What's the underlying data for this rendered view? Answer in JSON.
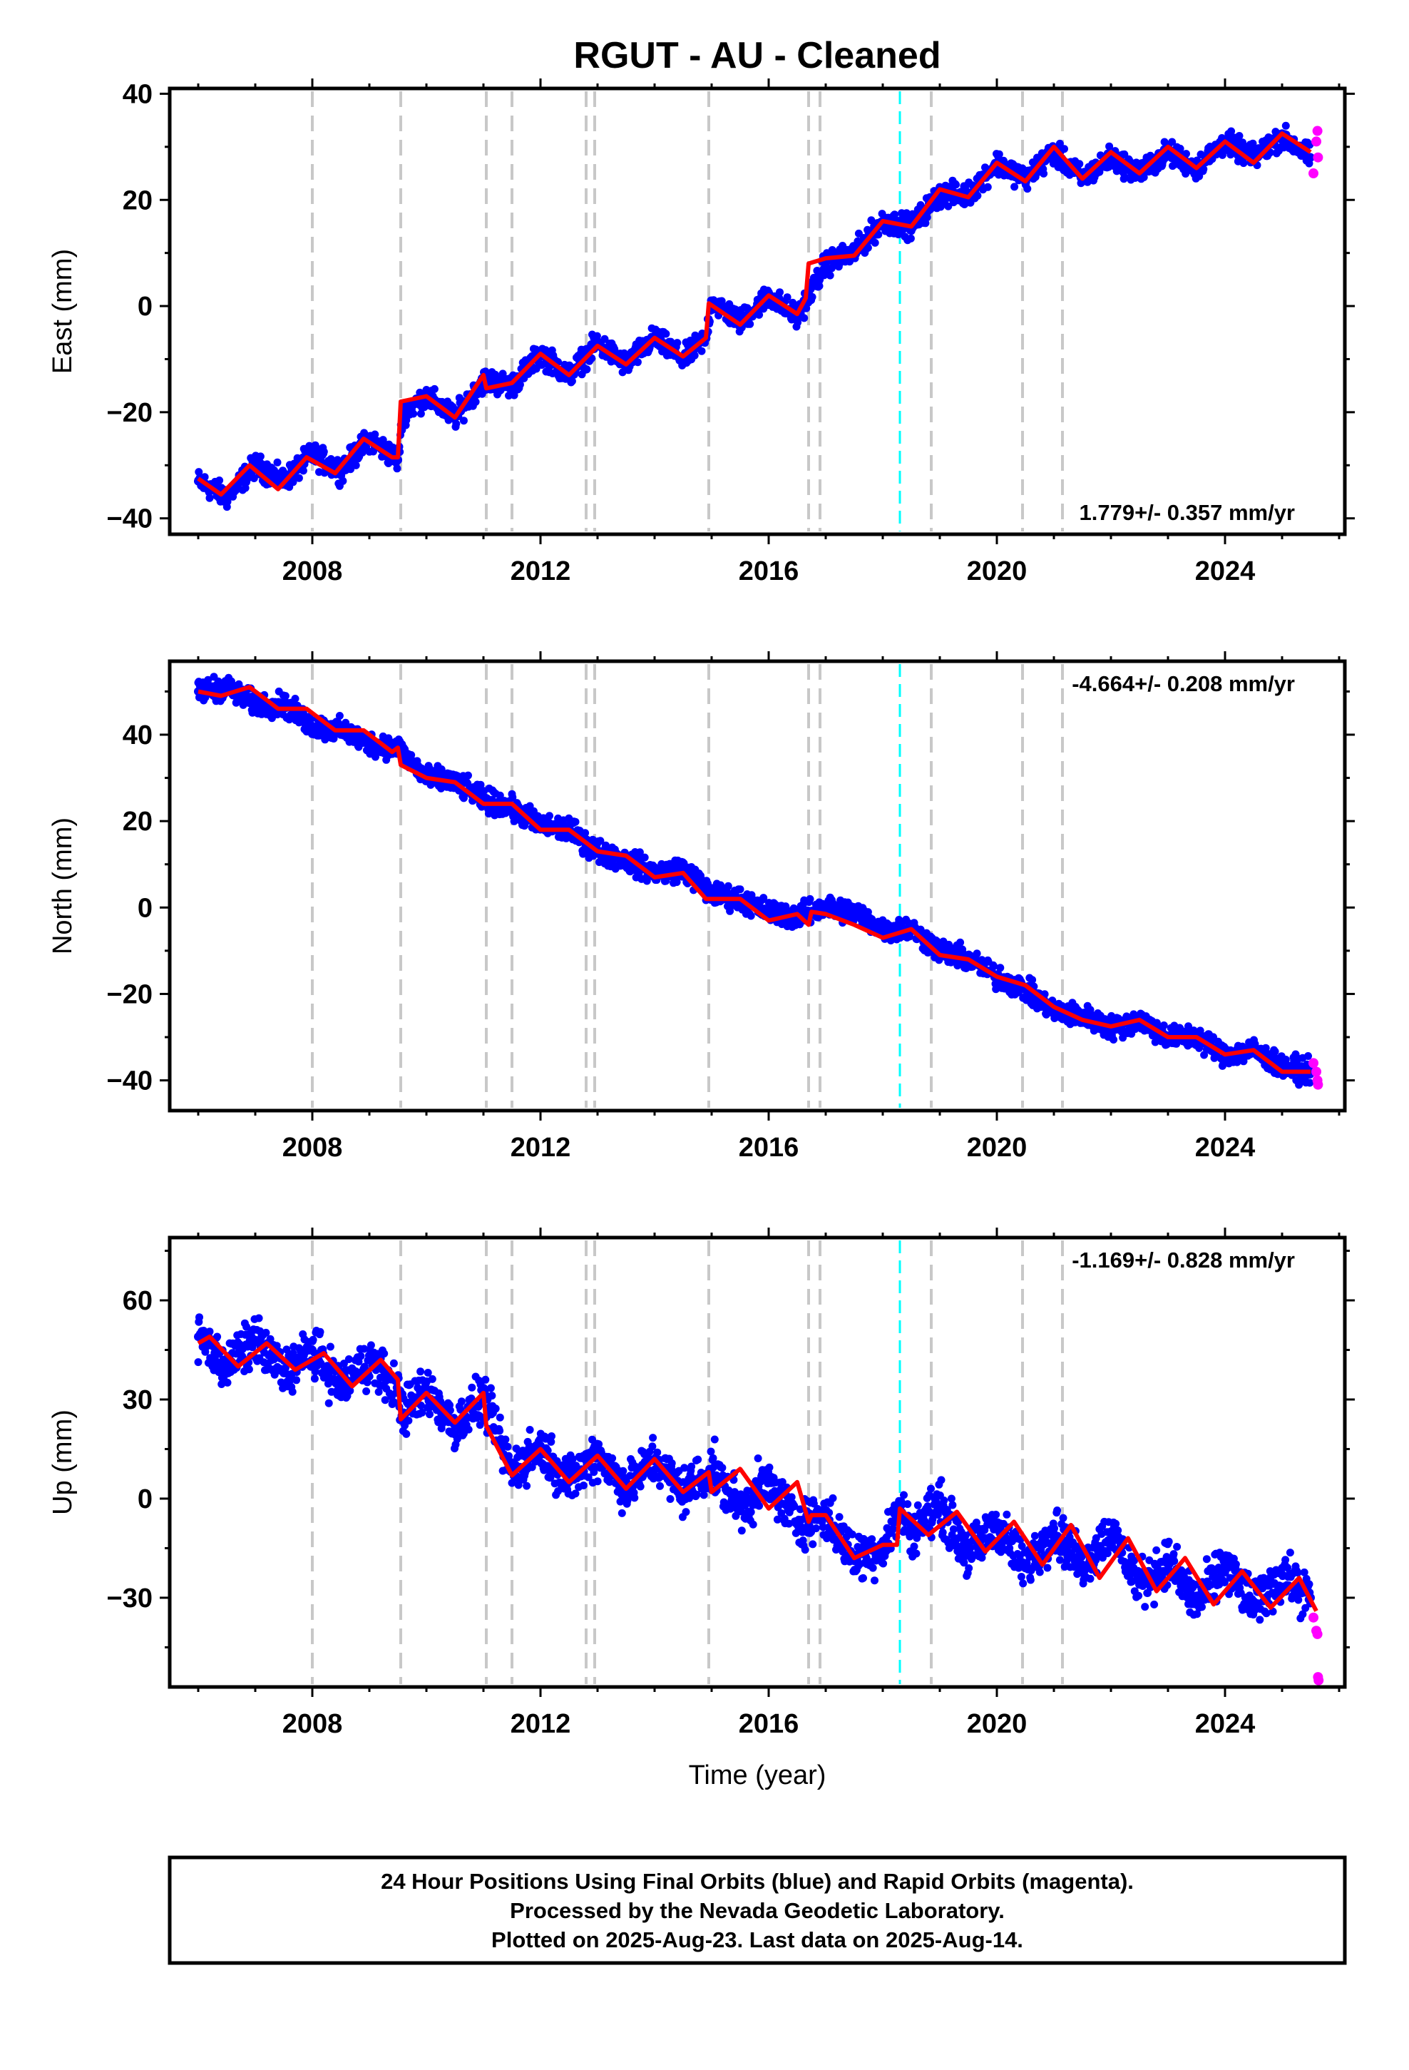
{
  "title": "RGUT  - AU - Cleaned",
  "xlabel": "Time (year)",
  "footer": [
    "24 Hour Positions Using Final Orbits (blue) and Rapid Orbits (magenta).",
    "Processed by the Nevada Geodetic Laboratory.",
    "Plotted on 2025-Aug-23. Last data on 2025-Aug-14."
  ],
  "colors": {
    "final_orbits": "#0000ff",
    "rapid_orbits": "#ff00ff",
    "model": "#ff0000",
    "equipment_change": "#c8c8c8",
    "earthquake": "#00ffff"
  },
  "chart_data": [
    {
      "type": "scatter",
      "panel": "east",
      "ylabel": "East (mm)",
      "xlim": [
        2005.5,
        2026.1
      ],
      "ylim": [
        -43,
        41
      ],
      "xticks": [
        2008,
        2012,
        2016,
        2020,
        2024
      ],
      "yticks": [
        -40,
        -20,
        0,
        20,
        40
      ],
      "rate_label": "1.779+/- 0.357 mm/yr",
      "rate_position": "bottom-right",
      "series": [
        {
          "name": "Final Orbits (blue)",
          "color": "#0000ff",
          "x": [
            2006.0,
            2006.5,
            2007.0,
            2007.5,
            2008.0,
            2008.5,
            2009.0,
            2009.5,
            2009.6,
            2010.0,
            2010.5,
            2011.0,
            2011.5,
            2012.0,
            2012.5,
            2013.0,
            2013.5,
            2014.0,
            2014.5,
            2014.9,
            2015.0,
            2015.5,
            2016.0,
            2016.5,
            2016.7,
            2017.0,
            2017.5,
            2018.0,
            2018.5,
            2019.0,
            2019.5,
            2020.0,
            2020.5,
            2021.0,
            2021.5,
            2022.0,
            2022.5,
            2023.0,
            2023.5,
            2024.0,
            2024.5,
            2025.0,
            2025.5
          ],
          "y": [
            -33,
            -36,
            -30,
            -33,
            -28,
            -31,
            -25,
            -29,
            -20,
            -17,
            -21,
            -14,
            -15,
            -9,
            -13,
            -7,
            -11,
            -6,
            -10,
            -6,
            1,
            -3,
            2,
            -2,
            2,
            8,
            10,
            16,
            15,
            21,
            21,
            27,
            24,
            29,
            24,
            28,
            25,
            29,
            26,
            31,
            28,
            32,
            28
          ]
        },
        {
          "name": "Rapid Orbits (magenta)",
          "color": "#ff00ff",
          "x": [
            2025.55,
            2025.6,
            2025.62,
            2025.63
          ],
          "y": [
            25,
            31,
            33,
            28
          ]
        }
      ],
      "model": {
        "x": [
          2006.0,
          2006.4,
          2006.9,
          2007.4,
          2007.9,
          2008.4,
          2008.9,
          2009.4,
          2009.5,
          2009.55,
          2010.0,
          2010.5,
          2011.0,
          2011.05,
          2011.5,
          2012.0,
          2012.5,
          2013.0,
          2013.5,
          2014.0,
          2014.5,
          2014.9,
          2014.95,
          2015.5,
          2016.0,
          2016.5,
          2016.65,
          2016.7,
          2017.0,
          2017.5,
          2018.0,
          2018.5,
          2019.0,
          2019.5,
          2020.0,
          2020.5,
          2021.0,
          2021.5,
          2022.0,
          2022.5,
          2023.0,
          2023.5,
          2024.0,
          2024.5,
          2025.0,
          2025.5
        ],
        "y": [
          -32.5,
          -35.5,
          -30,
          -34.5,
          -28.5,
          -31.5,
          -25,
          -28.5,
          -28.5,
          -18,
          -17,
          -21,
          -13,
          -15.5,
          -14.5,
          -9,
          -13,
          -7.5,
          -11,
          -6,
          -9.5,
          -6,
          0.5,
          -3.5,
          2,
          -1.5,
          1.5,
          8,
          9,
          9.5,
          16,
          15,
          22,
          20.5,
          27,
          23.5,
          30,
          24,
          29,
          25,
          30,
          26,
          31,
          27,
          32.5,
          29
        ]
      },
      "equipment_changes": [
        2008.0,
        2009.55,
        2011.05,
        2011.5,
        2012.8,
        2012.95,
        2014.95,
        2016.7,
        2016.9,
        2018.85,
        2020.45,
        2021.15
      ],
      "earthquakes": [
        2018.3
      ]
    },
    {
      "type": "scatter",
      "panel": "north",
      "ylabel": "North (mm)",
      "xlim": [
        2005.5,
        2026.1
      ],
      "ylim": [
        -47,
        57
      ],
      "xticks": [
        2008,
        2012,
        2016,
        2020,
        2024
      ],
      "yticks": [
        -40,
        -20,
        0,
        20,
        40
      ],
      "rate_label": "-4.664+/- 0.208 mm/yr",
      "rate_position": "top-right",
      "series": [
        {
          "name": "Final Orbits (blue)",
          "color": "#0000ff",
          "x": [
            2006.0,
            2006.5,
            2007.0,
            2007.5,
            2008.0,
            2008.5,
            2009.0,
            2009.5,
            2010.0,
            2010.5,
            2011.0,
            2011.5,
            2012.0,
            2012.5,
            2013.0,
            2013.5,
            2014.0,
            2014.5,
            2015.0,
            2015.5,
            2016.0,
            2016.5,
            2017.0,
            2017.5,
            2018.0,
            2018.5,
            2019.0,
            2019.5,
            2020.0,
            2020.5,
            2021.0,
            2021.5,
            2022.0,
            2022.5,
            2023.0,
            2023.5,
            2024.0,
            2024.5,
            2025.0,
            2025.5
          ],
          "y": [
            50,
            51,
            47,
            47,
            42,
            41,
            38,
            37,
            30,
            29,
            25,
            23,
            19,
            18,
            13,
            11,
            8,
            9,
            3,
            2,
            -1,
            -2,
            0,
            -1,
            -5,
            -5,
            -10,
            -12,
            -16,
            -19,
            -24,
            -25,
            -28,
            -26,
            -30,
            -30,
            -34,
            -33,
            -37,
            -38
          ]
        },
        {
          "name": "Rapid Orbits (magenta)",
          "color": "#ff00ff",
          "x": [
            2025.55,
            2025.6,
            2025.62,
            2025.63
          ],
          "y": [
            -36,
            -38,
            -40,
            -41
          ]
        }
      ],
      "model": {
        "x": [
          2006.0,
          2006.4,
          2006.9,
          2007.4,
          2007.9,
          2008.4,
          2008.9,
          2009.4,
          2009.5,
          2009.55,
          2010.0,
          2010.5,
          2011.0,
          2011.5,
          2012.0,
          2012.5,
          2013.0,
          2013.5,
          2014.0,
          2014.5,
          2014.9,
          2015.0,
          2015.5,
          2016.0,
          2016.5,
          2016.7,
          2016.75,
          2017.0,
          2017.5,
          2018.0,
          2018.5,
          2019.0,
          2019.5,
          2020.0,
          2020.5,
          2021.0,
          2021.5,
          2022.0,
          2022.5,
          2023.0,
          2023.5,
          2024.0,
          2024.5,
          2025.0,
          2025.5
        ],
        "y": [
          50,
          49,
          51,
          46,
          46,
          41,
          41,
          36,
          37,
          33,
          30,
          29,
          24,
          24,
          18,
          18,
          13,
          12,
          7,
          8,
          2,
          2,
          2,
          -3,
          -1.5,
          -4,
          -1,
          -1.5,
          -4,
          -7,
          -5,
          -11,
          -12,
          -16,
          -18,
          -23,
          -26,
          -27.5,
          -26,
          -30,
          -30,
          -34,
          -33,
          -38,
          -38
        ]
      },
      "equipment_changes": [
        2008.0,
        2009.55,
        2011.05,
        2011.5,
        2012.8,
        2012.95,
        2014.95,
        2016.7,
        2016.9,
        2018.85,
        2020.45,
        2021.15
      ],
      "earthquakes": [
        2018.3
      ]
    },
    {
      "type": "scatter",
      "panel": "up",
      "ylabel": "Up (mm)",
      "xlim": [
        2005.5,
        2026.1
      ],
      "ylim": [
        -57,
        79
      ],
      "xticks": [
        2008,
        2012,
        2016,
        2020,
        2024
      ],
      "yticks": [
        -30,
        0,
        30,
        60
      ],
      "rate_label": "-1.169+/- 0.828 mm/yr",
      "rate_position": "top-right",
      "series": [
        {
          "name": "Final Orbits (blue)",
          "color": "#0000ff",
          "x": [
            2006.0,
            2006.5,
            2007.0,
            2007.5,
            2008.0,
            2008.5,
            2009.0,
            2009.5,
            2009.6,
            2010.0,
            2010.5,
            2011.0,
            2011.5,
            2012.0,
            2012.5,
            2013.0,
            2013.5,
            2014.0,
            2014.5,
            2015.0,
            2015.5,
            2016.0,
            2016.5,
            2017.0,
            2017.5,
            2018.0,
            2018.3,
            2018.5,
            2019.0,
            2019.5,
            2020.0,
            2020.5,
            2021.0,
            2021.5,
            2022.0,
            2022.5,
            2023.0,
            2023.5,
            2024.0,
            2024.5,
            2025.0,
            2025.5
          ],
          "y": [
            49,
            40,
            48,
            38,
            45,
            34,
            42,
            33,
            26,
            33,
            22,
            30,
            8,
            16,
            5,
            14,
            3,
            12,
            2,
            9,
            -3,
            5,
            -7,
            -5,
            -18,
            -15,
            -3,
            -10,
            -2,
            -17,
            -8,
            -21,
            -9,
            -20,
            -10,
            -26,
            -19,
            -32,
            -20,
            -32,
            -23,
            -30
          ]
        },
        {
          "name": "Rapid Orbits (magenta)",
          "color": "#ff00ff",
          "x": [
            2025.55,
            2025.6,
            2025.62,
            2025.63,
            2025.64
          ],
          "y": [
            -36,
            -40,
            -41,
            -54,
            -55
          ]
        }
      ],
      "model": {
        "x": [
          2006.0,
          2006.2,
          2006.7,
          2007.2,
          2007.7,
          2008.2,
          2008.7,
          2009.2,
          2009.5,
          2009.55,
          2010.0,
          2010.5,
          2011.0,
          2011.05,
          2011.5,
          2012.0,
          2012.5,
          2013.0,
          2013.5,
          2014.0,
          2014.5,
          2014.95,
          2015.0,
          2015.5,
          2016.0,
          2016.5,
          2016.7,
          2016.75,
          2017.0,
          2017.5,
          2018.0,
          2018.25,
          2018.3,
          2018.8,
          2019.3,
          2019.8,
          2020.3,
          2020.8,
          2021.3,
          2021.8,
          2022.3,
          2022.8,
          2023.3,
          2023.8,
          2024.3,
          2024.8,
          2025.3,
          2025.6
        ],
        "y": [
          47,
          49,
          40,
          47,
          39,
          44,
          34,
          42,
          36,
          24,
          32,
          23,
          32,
          22,
          7,
          15,
          5,
          13,
          3,
          12,
          2,
          8,
          2,
          9,
          -3,
          5,
          -7,
          -5,
          -5,
          -18,
          -14,
          -14,
          -3,
          -11,
          -4,
          -16,
          -7,
          -20,
          -8,
          -24,
          -12,
          -28,
          -18,
          -32,
          -22,
          -33,
          -24,
          -34
        ]
      },
      "equipment_changes": [
        2008.0,
        2009.55,
        2011.05,
        2011.5,
        2012.8,
        2012.95,
        2014.95,
        2016.7,
        2016.9,
        2018.85,
        2020.45,
        2021.15
      ],
      "earthquakes": [
        2018.3
      ]
    }
  ]
}
